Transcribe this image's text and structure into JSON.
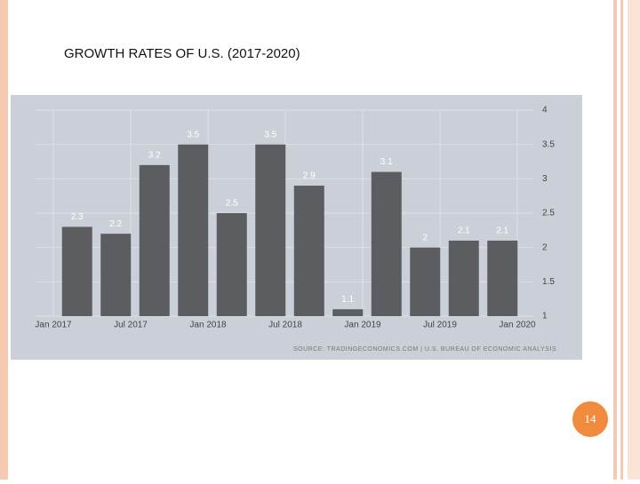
{
  "chart_data": {
    "type": "bar",
    "title": "GROWTH RATES OF U.S. (2017-2020)",
    "categories": [
      null,
      null,
      null,
      null,
      null,
      null,
      null,
      null,
      null,
      null,
      null,
      null
    ],
    "values": [
      2.3,
      2.2,
      3.2,
      3.5,
      2.5,
      3.5,
      2.9,
      1.1,
      3.1,
      2,
      2.1,
      2.1
    ],
    "color": "#5b5d61",
    "xtick_labels": [
      "Jan 2017",
      "Jul 2017",
      "Jan 2018",
      "Jul 2018",
      "Jan 2019",
      "Jul 2019",
      "Jan 2020"
    ],
    "ylim": [
      1,
      4
    ],
    "yticks": [
      1,
      1.5,
      2,
      2.5,
      3,
      3.5,
      4
    ],
    "grid": true,
    "source": "SOURCE: TRADINGECONOMICS.COM  |  U.S. BUREAU OF ECONOMIC ANALYSIS",
    "page_number": "14"
  }
}
